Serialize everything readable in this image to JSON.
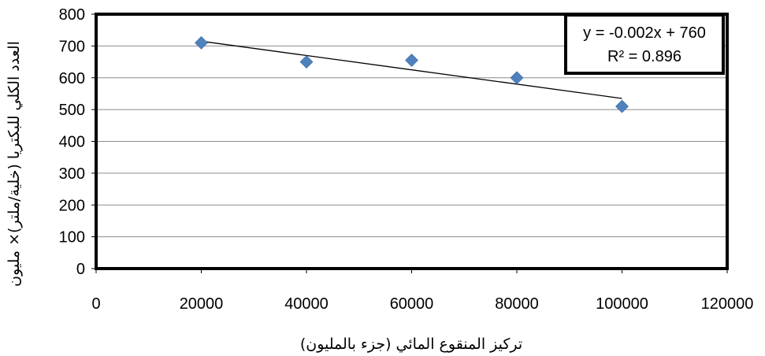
{
  "chart_data": {
    "type": "scatter",
    "xlabel": "تركيز المنقوع المائي (جزء بالمليون)",
    "ylabel": "العدد الكلي للبكتريا (خلية/ملتر)× مليون",
    "xlim": [
      0,
      120000
    ],
    "ylim": [
      0,
      800
    ],
    "x_ticks": [
      0,
      20000,
      40000,
      60000,
      80000,
      100000,
      120000
    ],
    "y_ticks": [
      0,
      100,
      200,
      300,
      400,
      500,
      600,
      700,
      800
    ],
    "grid": "horizontal",
    "marker_color": "#4F81BD",
    "points": [
      {
        "x": 20000,
        "y": 710
      },
      {
        "x": 40000,
        "y": 650
      },
      {
        "x": 60000,
        "y": 655
      },
      {
        "x": 80000,
        "y": 600
      },
      {
        "x": 100000,
        "y": 510
      }
    ],
    "trendline": {
      "type": "linear",
      "x_start": 20000,
      "y_start": 715,
      "x_end": 100000,
      "y_end": 535,
      "equation": "y = -0.002x + 760",
      "r_squared": "R² = 0.896"
    }
  }
}
